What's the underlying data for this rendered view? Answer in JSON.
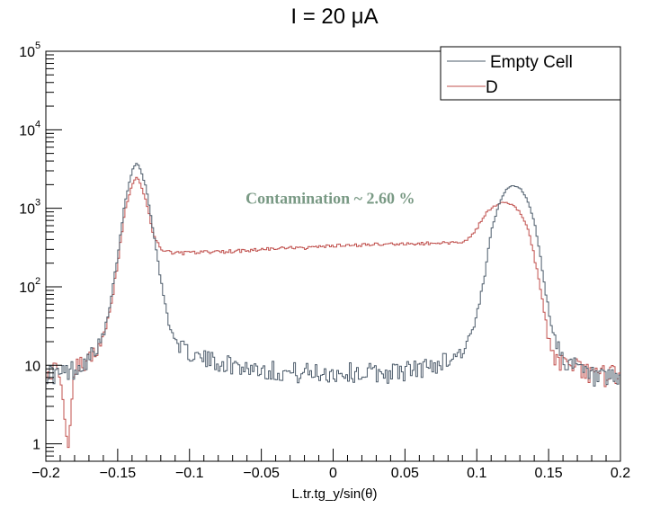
{
  "chart_data": {
    "type": "line",
    "title": "I = 20 μA",
    "xlabel": "L.tr.tg_y/sin(θ)",
    "ylabel": "",
    "xlim": [
      -0.2,
      0.2
    ],
    "ylim": [
      0.6,
      100000
    ],
    "yscale": "log",
    "grid": false,
    "legend_position": "top-right",
    "x_ticks": [
      "−0.2",
      "−0.15",
      "−0.1",
      "−0.05",
      "0",
      "0.05",
      "0.1",
      "0.15",
      "0.2"
    ],
    "x_tick_values": [
      -0.2,
      -0.15,
      -0.1,
      -0.05,
      0,
      0.05,
      0.1,
      0.15,
      0.2
    ],
    "y_ticks": [
      {
        "value": 1,
        "label": "1",
        "sup": ""
      },
      {
        "value": 10,
        "label": "10",
        "sup": ""
      },
      {
        "value": 100,
        "label": "10",
        "sup": "2"
      },
      {
        "value": 1000,
        "label": "10",
        "sup": "3"
      },
      {
        "value": 10000,
        "label": "10",
        "sup": "4"
      },
      {
        "value": 100000,
        "label": "10",
        "sup": "5"
      }
    ],
    "annotation": {
      "text": "Contamination ~ 2.60 %",
      "x": -0.002,
      "y": 1150,
      "color": "#7a9a85"
    },
    "series": [
      {
        "name": "Empty Cell",
        "color": "#4d5c6b",
        "x": [
          -0.2,
          -0.19,
          -0.18,
          -0.17,
          -0.16,
          -0.155,
          -0.15,
          -0.145,
          -0.14,
          -0.137,
          -0.135,
          -0.13,
          -0.125,
          -0.12,
          -0.115,
          -0.11,
          -0.1,
          -0.09,
          -0.08,
          -0.07,
          -0.06,
          -0.05,
          -0.04,
          -0.03,
          -0.02,
          -0.01,
          0,
          0.01,
          0.02,
          0.03,
          0.04,
          0.05,
          0.06,
          0.07,
          0.08,
          0.09,
          0.095,
          0.1,
          0.105,
          0.11,
          0.115,
          0.12,
          0.125,
          0.13,
          0.135,
          0.14,
          0.145,
          0.15,
          0.155,
          0.16,
          0.17,
          0.18,
          0.19,
          0.2
        ],
        "y": [
          8,
          7.5,
          9,
          12,
          22,
          60,
          250,
          1200,
          3000,
          3800,
          3500,
          1800,
          500,
          120,
          40,
          20,
          14,
          12,
          11,
          10,
          9.5,
          9,
          8.5,
          8,
          8,
          8,
          8,
          8,
          8,
          8,
          8,
          8.5,
          9,
          10,
          12,
          15,
          22,
          40,
          120,
          500,
          1100,
          1700,
          2000,
          1800,
          1300,
          700,
          200,
          50,
          20,
          12,
          9,
          7,
          6,
          7
        ]
      },
      {
        "name": "D",
        "color": "#c0504d",
        "x": [
          -0.2,
          -0.19,
          -0.185,
          -0.18,
          -0.17,
          -0.16,
          -0.155,
          -0.15,
          -0.145,
          -0.14,
          -0.137,
          -0.135,
          -0.13,
          -0.125,
          -0.12,
          -0.115,
          -0.11,
          -0.1,
          -0.09,
          -0.08,
          -0.07,
          -0.06,
          -0.05,
          -0.04,
          -0.03,
          -0.02,
          -0.01,
          0,
          0.01,
          0.02,
          0.03,
          0.04,
          0.05,
          0.06,
          0.07,
          0.08,
          0.09,
          0.095,
          0.1,
          0.105,
          0.11,
          0.115,
          0.12,
          0.125,
          0.13,
          0.135,
          0.14,
          0.145,
          0.15,
          0.155,
          0.16,
          0.17,
          0.18,
          0.19,
          0.2
        ],
        "y": [
          8,
          9,
          1.3,
          9,
          12,
          20,
          50,
          200,
          900,
          2000,
          2500,
          2300,
          1200,
          450,
          300,
          280,
          270,
          270,
          275,
          280,
          285,
          290,
          300,
          305,
          310,
          315,
          320,
          330,
          335,
          340,
          345,
          350,
          350,
          355,
          360,
          360,
          380,
          420,
          550,
          800,
          1000,
          1150,
          1200,
          1100,
          900,
          600,
          250,
          80,
          20,
          12,
          10,
          9,
          8,
          7,
          8
        ]
      }
    ]
  }
}
